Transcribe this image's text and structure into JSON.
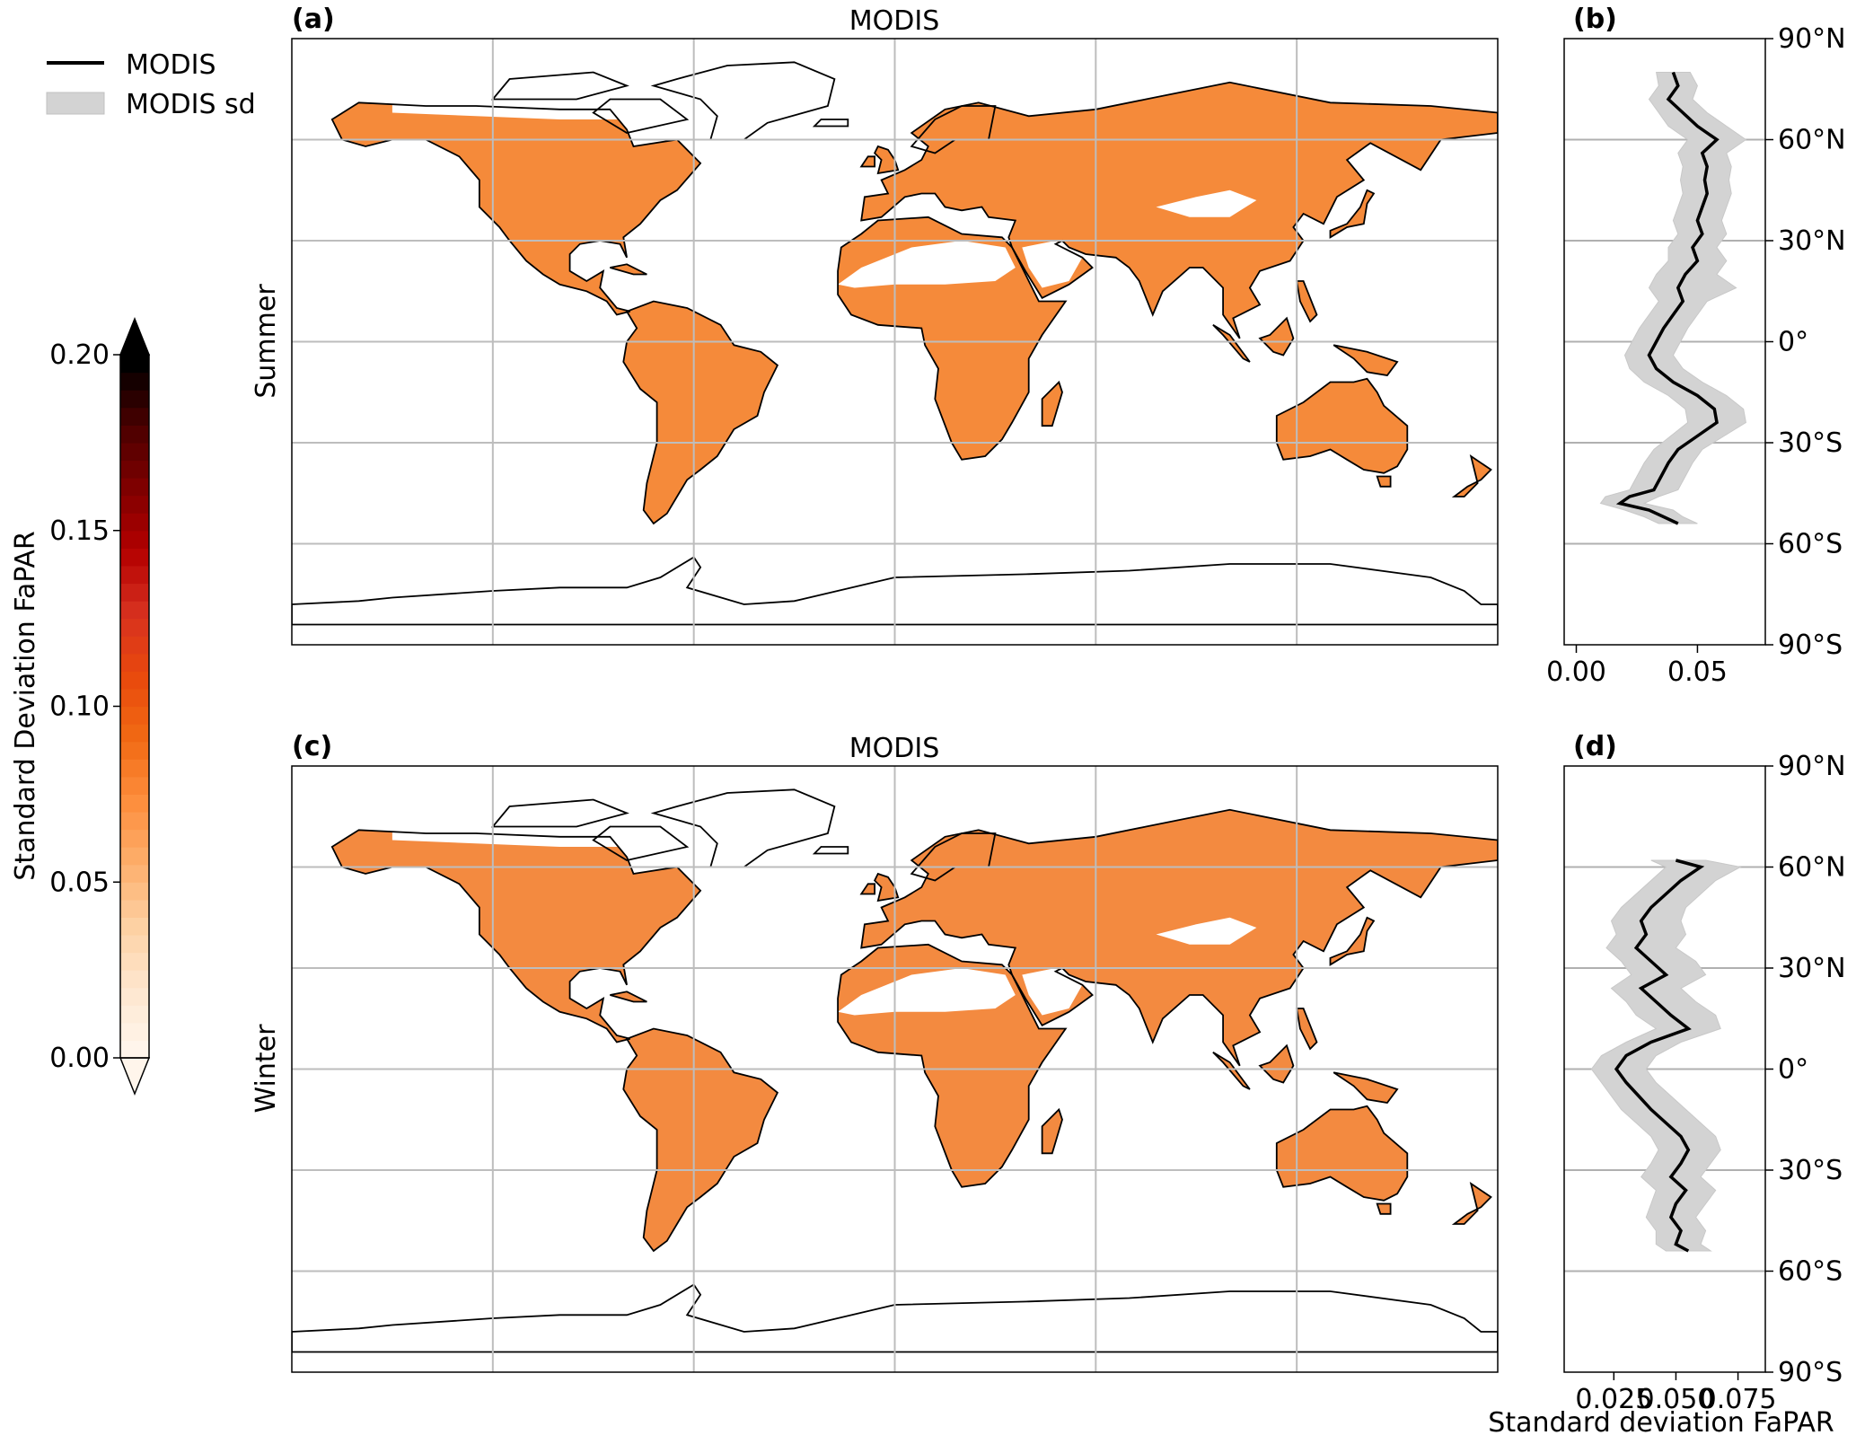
{
  "legend": {
    "items": [
      {
        "label": "MODIS",
        "kind": "line",
        "color": "#000000"
      },
      {
        "label": "MODIS sd",
        "kind": "patch",
        "color": "#d3d3d3"
      }
    ]
  },
  "colorbar": {
    "label": "Standard Deviation FaPAR",
    "min": 0.0,
    "max": 0.2,
    "levels": 40,
    "ticks": [
      "0.00",
      "0.05",
      "0.10",
      "0.15",
      "0.20"
    ],
    "extend": "both",
    "colors": [
      "#fff5eb",
      "#fee6ce",
      "#fdd0a2",
      "#fdae6b",
      "#fd8d3c",
      "#f16913",
      "#e8490d",
      "#d7301f",
      "#b30000",
      "#7f0000",
      "#4a0000",
      "#000000"
    ]
  },
  "chart_data": [
    {
      "type": "heatmap",
      "panel": "(a)",
      "title": "MODIS",
      "row_label": "Summer",
      "description_values": "gridded global standard deviation of FaPAR over land, mostly 0.03-0.10"
    },
    {
      "type": "line",
      "panel": "(b)",
      "title": "",
      "xlabel": "",
      "ylabel": "",
      "xlim": [
        -0.005,
        0.078
      ],
      "xticks": [
        "0.00",
        "0.05"
      ],
      "ylim": [
        -90,
        90
      ],
      "yticks": [
        "90°N",
        "60°N",
        "30°N",
        "0°",
        "30°S",
        "60°S",
        "90°S"
      ],
      "grid": "horizontal",
      "series": [
        {
          "name": "MODIS",
          "lat": [
            80,
            76,
            72,
            68,
            64,
            60,
            56,
            52,
            48,
            44,
            40,
            36,
            32,
            28,
            24,
            20,
            16,
            12,
            8,
            4,
            0,
            -4,
            -8,
            -12,
            -16,
            -20,
            -24,
            -28,
            -32,
            -36,
            -40,
            -44,
            -46,
            -48,
            -50,
            -52,
            -54
          ],
          "mean": [
            0.04,
            0.042,
            0.038,
            0.044,
            0.05,
            0.058,
            0.052,
            0.054,
            0.053,
            0.054,
            0.052,
            0.05,
            0.052,
            0.048,
            0.05,
            0.045,
            0.042,
            0.044,
            0.04,
            0.036,
            0.033,
            0.03,
            0.033,
            0.04,
            0.05,
            0.057,
            0.058,
            0.05,
            0.042,
            0.038,
            0.035,
            0.032,
            0.022,
            0.018,
            0.03,
            0.036,
            0.042
          ],
          "lower": [
            0.033,
            0.034,
            0.03,
            0.034,
            0.038,
            0.046,
            0.042,
            0.044,
            0.043,
            0.044,
            0.042,
            0.04,
            0.042,
            0.038,
            0.038,
            0.033,
            0.03,
            0.034,
            0.03,
            0.026,
            0.023,
            0.02,
            0.022,
            0.028,
            0.038,
            0.045,
            0.046,
            0.039,
            0.032,
            0.028,
            0.025,
            0.022,
            0.012,
            0.01,
            0.02,
            0.028,
            0.034
          ],
          "upper": [
            0.047,
            0.05,
            0.048,
            0.054,
            0.062,
            0.07,
            0.062,
            0.064,
            0.063,
            0.064,
            0.062,
            0.06,
            0.062,
            0.058,
            0.062,
            0.058,
            0.066,
            0.054,
            0.05,
            0.046,
            0.043,
            0.04,
            0.044,
            0.052,
            0.062,
            0.069,
            0.07,
            0.061,
            0.052,
            0.048,
            0.045,
            0.042,
            0.034,
            0.028,
            0.04,
            0.044,
            0.05
          ]
        }
      ]
    },
    {
      "type": "heatmap",
      "panel": "(c)",
      "title": "MODIS",
      "row_label": "Winter",
      "description_values": "gridded global standard deviation of FaPAR over land, mostly 0.02-0.10"
    },
    {
      "type": "line",
      "panel": "(d)",
      "title": "",
      "xlabel": "Standard deviation FaPAR",
      "ylabel": "",
      "xlim": [
        0.005,
        0.086
      ],
      "xticks": [
        "0.025",
        "0.050",
        "0.075"
      ],
      "ylim": [
        -90,
        90
      ],
      "yticks": [
        "90°N",
        "60°N",
        "30°N",
        "0°",
        "30°S",
        "60°S",
        "90°S"
      ],
      "grid": "horizontal",
      "series": [
        {
          "name": "MODIS",
          "lat": [
            62,
            60,
            56,
            52,
            48,
            44,
            40,
            36,
            32,
            28,
            24,
            20,
            16,
            12,
            8,
            4,
            0,
            -4,
            -8,
            -12,
            -16,
            -20,
            -24,
            -28,
            -32,
            -36,
            -40,
            -44,
            -48,
            -52,
            -54
          ],
          "mean": [
            0.05,
            0.06,
            0.052,
            0.046,
            0.04,
            0.036,
            0.038,
            0.034,
            0.04,
            0.046,
            0.036,
            0.042,
            0.048,
            0.055,
            0.04,
            0.03,
            0.026,
            0.03,
            0.035,
            0.04,
            0.046,
            0.052,
            0.055,
            0.052,
            0.048,
            0.054,
            0.05,
            0.048,
            0.052,
            0.05,
            0.055
          ],
          "lower": [
            0.04,
            0.046,
            0.04,
            0.034,
            0.028,
            0.024,
            0.026,
            0.022,
            0.028,
            0.032,
            0.024,
            0.03,
            0.034,
            0.042,
            0.03,
            0.02,
            0.016,
            0.02,
            0.024,
            0.028,
            0.034,
            0.04,
            0.043,
            0.04,
            0.036,
            0.042,
            0.04,
            0.038,
            0.042,
            0.042,
            0.046
          ],
          "upper": [
            0.062,
            0.076,
            0.066,
            0.06,
            0.054,
            0.052,
            0.054,
            0.05,
            0.058,
            0.062,
            0.052,
            0.058,
            0.066,
            0.068,
            0.052,
            0.042,
            0.038,
            0.042,
            0.048,
            0.054,
            0.06,
            0.066,
            0.068,
            0.064,
            0.06,
            0.066,
            0.062,
            0.058,
            0.062,
            0.06,
            0.064
          ]
        }
      ]
    }
  ]
}
